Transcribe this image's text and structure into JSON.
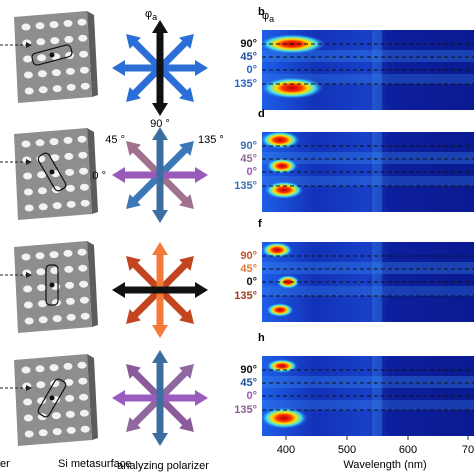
{
  "figure": {
    "polarizer_symbol": {
      "symbol": "φ",
      "subscript": "a"
    },
    "polarizer_angle_labels": [
      "90 °",
      "45 °",
      "135 °",
      "0 °"
    ],
    "panels": [
      {
        "letter": "b",
        "symbol": "φ",
        "subscript": "a",
        "rows": [
          {
            "label": "90°",
            "color": "#111111"
          },
          {
            "label": "45°",
            "color": "#1f4e9c"
          },
          {
            "label": "0°",
            "color": "#2a63c4"
          },
          {
            "label": "135°",
            "color": "#2a63c4"
          }
        ]
      },
      {
        "letter": "d",
        "rows": [
          {
            "label": "90°",
            "color": "#3a6fb0"
          },
          {
            "label": "45°",
            "color": "#8c6a92"
          },
          {
            "label": "0°",
            "color": "#9a5bb8"
          },
          {
            "label": "135°",
            "color": "#3a6fb0"
          }
        ]
      },
      {
        "letter": "f",
        "rows": [
          {
            "label": "90°",
            "color": "#c0552a"
          },
          {
            "label": "45°",
            "color": "#e07b39"
          },
          {
            "label": "0°",
            "color": "#111111"
          },
          {
            "label": "135°",
            "color": "#a33a1e"
          }
        ]
      },
      {
        "letter": "h",
        "rows": [
          {
            "label": "90°",
            "color": "#111111"
          },
          {
            "label": "45°",
            "color": "#1f4e9c"
          },
          {
            "label": "0°",
            "color": "#9a5bb8"
          },
          {
            "label": "135°",
            "color": "#8c5a9a"
          }
        ]
      }
    ],
    "x_axis": {
      "ticks": [
        "400",
        "500",
        "600",
        "70"
      ],
      "label": "Wavelength (nm)"
    },
    "captions": {
      "left": "er",
      "metasurface": "Si metasurface",
      "polarizer": "analyzing polarizer"
    }
  }
}
